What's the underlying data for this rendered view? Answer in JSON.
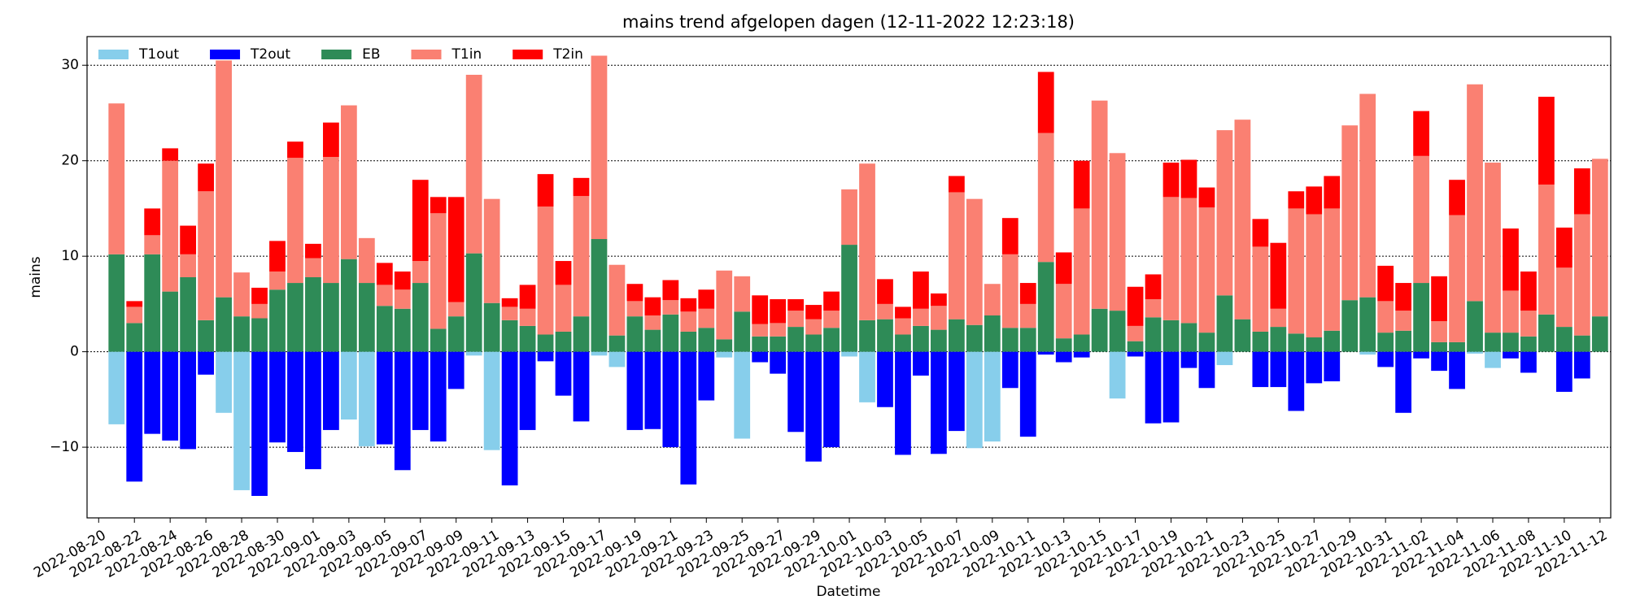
{
  "chart_data": {
    "type": "stacked-bar",
    "title": "mains  trend afgelopen dagen (12-11-2022 12:23:18)",
    "xlabel": "Datetime",
    "ylabel": "mains",
    "x": [
      "2022-08-21",
      "2022-08-22",
      "2022-08-23",
      "2022-08-24",
      "2022-08-25",
      "2022-08-26",
      "2022-08-27",
      "2022-08-28",
      "2022-08-29",
      "2022-08-30",
      "2022-08-31",
      "2022-09-01",
      "2022-09-02",
      "2022-09-03",
      "2022-09-04",
      "2022-09-05",
      "2022-09-06",
      "2022-09-07",
      "2022-09-08",
      "2022-09-09",
      "2022-09-10",
      "2022-09-11",
      "2022-09-12",
      "2022-09-13",
      "2022-09-14",
      "2022-09-15",
      "2022-09-16",
      "2022-09-17",
      "2022-09-18",
      "2022-09-19",
      "2022-09-20",
      "2022-09-21",
      "2022-09-22",
      "2022-09-23",
      "2022-09-24",
      "2022-09-25",
      "2022-09-26",
      "2022-09-27",
      "2022-09-28",
      "2022-09-29",
      "2022-09-30",
      "2022-10-01",
      "2022-10-02",
      "2022-10-03",
      "2022-10-04",
      "2022-10-05",
      "2022-10-06",
      "2022-10-07",
      "2022-10-08",
      "2022-10-09",
      "2022-10-10",
      "2022-10-11",
      "2022-10-12",
      "2022-10-13",
      "2022-10-14",
      "2022-10-15",
      "2022-10-16",
      "2022-10-17",
      "2022-10-18",
      "2022-10-19",
      "2022-10-20",
      "2022-10-21",
      "2022-10-22",
      "2022-10-23",
      "2022-10-24",
      "2022-10-25",
      "2022-10-26",
      "2022-10-27",
      "2022-10-28",
      "2022-10-29",
      "2022-10-30",
      "2022-10-31",
      "2022-11-01",
      "2022-11-02",
      "2022-11-03",
      "2022-11-04",
      "2022-11-05",
      "2022-11-06",
      "2022-11-07",
      "2022-11-08",
      "2022-11-09",
      "2022-11-10",
      "2022-11-11",
      "2022-11-12"
    ],
    "xticks": [
      "2022-08-20",
      "2022-08-22",
      "2022-08-24",
      "2022-08-26",
      "2022-08-28",
      "2022-08-30",
      "2022-09-01",
      "2022-09-03",
      "2022-09-05",
      "2022-09-07",
      "2022-09-09",
      "2022-09-11",
      "2022-09-13",
      "2022-09-15",
      "2022-09-17",
      "2022-09-19",
      "2022-09-21",
      "2022-09-23",
      "2022-09-25",
      "2022-09-27",
      "2022-09-29",
      "2022-10-01",
      "2022-10-03",
      "2022-10-05",
      "2022-10-07",
      "2022-10-09",
      "2022-10-11",
      "2022-10-13",
      "2022-10-15",
      "2022-10-17",
      "2022-10-19",
      "2022-10-21",
      "2022-10-23",
      "2022-10-25",
      "2022-10-27",
      "2022-10-29",
      "2022-10-31",
      "2022-11-02",
      "2022-11-04",
      "2022-11-06",
      "2022-11-08",
      "2022-11-10",
      "2022-11-12"
    ],
    "ylim": [
      -17.4,
      33
    ],
    "yticks": [
      {
        "value": -10,
        "label": "−10"
      },
      0,
      10,
      20,
      30
    ],
    "grid": true,
    "legend": "upper left",
    "series": [
      {
        "name": "T1out",
        "color": "#87ceeb",
        "values": [
          -7.6,
          0,
          0,
          0,
          0,
          0,
          -6.4,
          -14.5,
          0,
          0,
          0,
          0,
          0,
          -7.1,
          -9.9,
          0,
          0,
          0,
          0,
          0,
          -0.4,
          -10.3,
          0,
          0,
          0,
          0,
          0,
          -0.4,
          -1.6,
          0,
          0,
          0,
          0,
          0,
          -0.6,
          -9.1,
          0,
          0,
          0,
          0,
          0,
          -0.5,
          -5.3,
          0,
          0,
          0,
          0,
          0,
          -10.1,
          -9.4,
          0,
          0,
          0,
          0,
          0,
          0,
          -4.9,
          0,
          0,
          0,
          0,
          0,
          -1.4,
          0,
          0,
          0,
          0,
          0,
          0,
          0,
          -0.3,
          0,
          0,
          0,
          0,
          0,
          -0.2,
          -1.7,
          0,
          0,
          0,
          0,
          0,
          0
        ]
      },
      {
        "name": "T2out",
        "color": "#0000ff",
        "values": [
          0,
          -13.6,
          -8.6,
          -9.3,
          -10.2,
          -2.4,
          0,
          0,
          -15.1,
          -9.5,
          -10.5,
          -12.3,
          -8.2,
          0,
          0,
          -9.7,
          -12.4,
          -8.2,
          -9.4,
          -3.9,
          0,
          0,
          -14.0,
          -8.2,
          -1.0,
          -4.6,
          -7.3,
          0,
          0,
          -8.2,
          -8.1,
          -10.0,
          -13.9,
          -5.1,
          0,
          0,
          -1.1,
          -2.3,
          -8.4,
          -11.5,
          -10.0,
          0,
          0,
          -5.8,
          -10.8,
          -2.5,
          -10.7,
          -8.3,
          0,
          0,
          -3.8,
          -8.9,
          -0.3,
          -1.1,
          -0.6,
          0,
          0,
          -0.5,
          -7.5,
          -7.4,
          -1.7,
          -3.8,
          0,
          0,
          -3.7,
          -3.7,
          -6.2,
          -3.3,
          -3.1,
          0,
          0,
          -1.6,
          -6.4,
          -0.7,
          -2.0,
          -3.9,
          0,
          0,
          -0.7,
          -2.2,
          0,
          -4.2,
          -2.8,
          0
        ]
      },
      {
        "name": "EB",
        "color": "#2e8b57",
        "values": [
          10.2,
          3,
          10.2,
          6.3,
          7.8,
          3.3,
          5.7,
          3.7,
          3.5,
          6.5,
          7.2,
          7.8,
          7.2,
          9.7,
          7.2,
          4.8,
          4.5,
          7.2,
          2.4,
          3.7,
          10.3,
          5.1,
          3.3,
          2.7,
          1.8,
          2.1,
          3.7,
          11.8,
          1.7,
          3.7,
          2.3,
          3.9,
          2.1,
          2.5,
          1.3,
          4.2,
          1.6,
          1.6,
          2.6,
          1.8,
          2.5,
          11.2,
          3.3,
          3.4,
          1.8,
          2.7,
          2.3,
          3.4,
          2.8,
          3.8,
          2.5,
          2.5,
          9.4,
          1.4,
          1.8,
          4.5,
          4.3,
          1.1,
          3.6,
          3.3,
          3.0,
          2.0,
          5.9,
          3.4,
          2.1,
          2.6,
          1.9,
          1.5,
          2.2,
          5.4,
          5.7,
          2.0,
          2.2,
          7.2,
          1.0,
          1.0,
          5.3,
          2.0,
          2.0,
          1.6,
          3.9,
          2.6,
          1.7,
          3.7
        ]
      },
      {
        "name": "T1in",
        "color": "#fa8072",
        "values": [
          15.8,
          1.7,
          2.0,
          13.7,
          2.4,
          13.5,
          24.8,
          4.6,
          1.5,
          1.9,
          13.1,
          2.0,
          13.2,
          16.1,
          4.7,
          2.2,
          2.0,
          2.3,
          12.1,
          1.5,
          18.7,
          10.9,
          1.4,
          1.8,
          13.4,
          4.9,
          12.6,
          19.2,
          7.4,
          1.6,
          1.5,
          1.5,
          2.1,
          2.0,
          7.2,
          3.7,
          1.3,
          1.4,
          1.7,
          1.6,
          1.8,
          5.8,
          16.4,
          1.6,
          1.7,
          1.8,
          2.5,
          13.3,
          13.2,
          3.3,
          7.7,
          2.5,
          13.5,
          5.7,
          13.2,
          21.8,
          16.5,
          1.6,
          1.9,
          12.9,
          13.1,
          13.1,
          17.3,
          20.9,
          8.9,
          1.9,
          13.1,
          12.9,
          12.8,
          18.3,
          21.3,
          3.3,
          2.1,
          13.3,
          2.2,
          13.3,
          22.7,
          17.8,
          4.4,
          2.7,
          13.6,
          6.2,
          12.7,
          16.5
        ]
      },
      {
        "name": "T2in",
        "color": "#ff0000",
        "values": [
          0,
          0.6,
          2.8,
          1.3,
          3.0,
          2.9,
          0,
          0,
          1.7,
          3.2,
          1.7,
          1.5,
          3.6,
          0,
          0,
          2.3,
          1.9,
          8.5,
          1.7,
          11.0,
          0,
          0,
          0.9,
          2.5,
          3.4,
          2.5,
          1.9,
          0,
          0,
          1.8,
          1.9,
          2.1,
          1.4,
          2.0,
          0,
          0,
          3.0,
          2.5,
          1.2,
          1.5,
          2.0,
          0,
          0,
          2.6,
          1.2,
          3.9,
          1.3,
          1.7,
          0,
          0,
          3.8,
          2.2,
          6.4,
          3.3,
          5.0,
          0,
          0,
          4.1,
          2.6,
          3.6,
          4.0,
          2.1,
          0,
          0,
          2.9,
          6.9,
          1.8,
          2.9,
          3.4,
          0,
          0,
          3.7,
          2.9,
          4.7,
          4.7,
          3.7,
          0,
          0,
          6.5,
          4.1,
          9.2,
          4.2,
          4.8,
          0
        ]
      }
    ]
  }
}
